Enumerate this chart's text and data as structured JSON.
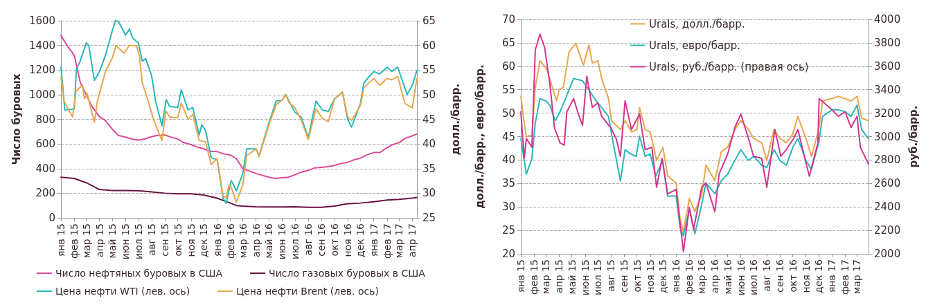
{
  "chart_data": [
    {
      "type": "line",
      "ylabel": "Число буровых",
      "y2label": "долл./барр.",
      "xlim": [
        "2015-01-01",
        "2017-04-12"
      ],
      "xticks": [
        {
          "value": "2015-01",
          "label": "янв 15"
        },
        {
          "value": "2015-02",
          "label": "фев 15"
        },
        {
          "value": "2015-03",
          "label": "мар 15"
        },
        {
          "value": "2015-04",
          "label": "апр 15"
        },
        {
          "value": "2015-05",
          "label": "май 15"
        },
        {
          "value": "2015-06",
          "label": "июн 15"
        },
        {
          "value": "2015-07",
          "label": "июл 15"
        },
        {
          "value": "2015-08",
          "label": "авг 15"
        },
        {
          "value": "2015-09",
          "label": "сен 15"
        },
        {
          "value": "2015-10",
          "label": "окт 15"
        },
        {
          "value": "2015-11",
          "label": "ноя 15"
        },
        {
          "value": "2015-12",
          "label": "дек 15"
        },
        {
          "value": "2016-01",
          "label": "янв 16"
        },
        {
          "value": "2016-02",
          "label": "фев 16"
        },
        {
          "value": "2016-03",
          "label": "мар 16"
        },
        {
          "value": "2016-04",
          "label": "апр 16"
        },
        {
          "value": "2016-05",
          "label": "май 16"
        },
        {
          "value": "2016-06",
          "label": "июн 16"
        },
        {
          "value": "2016-07",
          "label": "июл 16"
        },
        {
          "value": "2016-08",
          "label": "авг 16"
        },
        {
          "value": "2016-09",
          "label": "сен 16"
        },
        {
          "value": "2016-10",
          "label": "окт 16"
        },
        {
          "value": "2016-11",
          "label": "ноя 16"
        },
        {
          "value": "2016-12",
          "label": "дек 16"
        },
        {
          "value": "2017-01",
          "label": "янв 17"
        },
        {
          "value": "2017-02",
          "label": "фев 17"
        },
        {
          "value": "2017-03",
          "label": "мар 17"
        },
        {
          "value": "2017-04",
          "label": "апр 17"
        }
      ],
      "ylim": [
        0,
        1600
      ],
      "yticks": [
        0,
        200,
        400,
        600,
        800,
        1000,
        1200,
        1400,
        1600
      ],
      "y2lim": [
        25,
        65
      ],
      "y2ticks": [
        25,
        30,
        35,
        40,
        45,
        50,
        55,
        60,
        65
      ],
      "grid": "y",
      "legend": "bottom",
      "marker": "none",
      "line_style": "solid",
      "series": [
        {
          "name": "Число нефтяных буровых в США",
          "color": "#dd4a98",
          "x": [
            "2015-01-01",
            "2015-01-15",
            "2015-02-01",
            "2015-02-15",
            "2015-03-01",
            "2015-03-15",
            "2015-04-01",
            "2015-04-15",
            "2015-05-01",
            "2015-05-15",
            "2015-06-01",
            "2015-06-15",
            "2015-07-01",
            "2015-07-15",
            "2015-08-01",
            "2015-08-15",
            "2015-09-01",
            "2015-09-15",
            "2015-10-01",
            "2015-10-15",
            "2015-11-01",
            "2015-11-15",
            "2015-12-01",
            "2015-12-15",
            "2016-01-01",
            "2016-01-15",
            "2016-02-01",
            "2016-02-15",
            "2016-03-01",
            "2016-04-01",
            "2016-05-01",
            "2016-05-15",
            "2016-06-01",
            "2016-06-15",
            "2016-07-01",
            "2016-07-15",
            "2016-08-01",
            "2016-08-15",
            "2016-09-01",
            "2016-09-15",
            "2016-10-01",
            "2016-10-15",
            "2016-11-01",
            "2016-11-15",
            "2016-12-01",
            "2016-12-15",
            "2017-01-01",
            "2017-01-15",
            "2017-02-01",
            "2017-02-15",
            "2017-03-01",
            "2017-03-15",
            "2017-04-01",
            "2017-04-12"
          ],
          "values": [
            1480,
            1400,
            1320,
            1100,
            1000,
            900,
            820,
            790,
            720,
            670,
            655,
            640,
            630,
            640,
            660,
            670,
            672,
            655,
            640,
            610,
            595,
            575,
            560,
            540,
            538,
            520,
            510,
            480,
            400,
            360,
            330,
            320,
            325,
            330,
            350,
            370,
            385,
            405,
            410,
            415,
            425,
            440,
            450,
            470,
            485,
            510,
            530,
            530,
            570,
            595,
            610,
            645,
            665,
            680
          ]
        },
        {
          "name": "Число газовых буровых в США",
          "color": "#6b1341",
          "x": [
            "2015-01-01",
            "2015-02-01",
            "2015-03-01",
            "2015-04-01",
            "2015-05-01",
            "2015-06-01",
            "2015-07-01",
            "2015-08-01",
            "2015-09-01",
            "2015-10-01",
            "2015-11-01",
            "2015-12-01",
            "2016-01-01",
            "2016-02-01",
            "2016-02-15",
            "2016-03-01",
            "2016-04-01",
            "2016-05-01",
            "2016-06-01",
            "2016-07-01",
            "2016-08-01",
            "2016-09-01",
            "2016-10-01",
            "2016-11-01",
            "2016-12-01",
            "2017-01-01",
            "2017-02-01",
            "2017-03-01",
            "2017-04-01",
            "2017-04-12"
          ],
          "values": [
            330,
            320,
            285,
            230,
            222,
            222,
            220,
            210,
            200,
            195,
            195,
            185,
            160,
            120,
            100,
            95,
            90,
            88,
            88,
            90,
            85,
            85,
            95,
            115,
            120,
            130,
            145,
            150,
            160,
            165
          ]
        },
        {
          "name": "Цена нефти WTI (лев. ось)",
          "color": "#2ab7b7",
          "axis": "y2",
          "x": [
            "2015-01-01",
            "2015-01-10",
            "2015-02-01",
            "2015-02-06",
            "2015-02-14",
            "2015-03-01",
            "2015-03-07",
            "2015-03-20",
            "2015-04-01",
            "2015-04-15",
            "2015-05-01",
            "2015-05-08",
            "2015-05-15",
            "2015-06-01",
            "2015-06-10",
            "2015-06-18",
            "2015-07-01",
            "2015-07-10",
            "2015-07-18",
            "2015-08-01",
            "2015-08-10",
            "2015-08-25",
            "2015-09-04",
            "2015-09-12",
            "2015-10-01",
            "2015-10-09",
            "2015-10-25",
            "2015-11-05",
            "2015-11-20",
            "2015-11-26",
            "2015-12-05",
            "2015-12-18",
            "2016-01-01",
            "2016-01-15",
            "2016-01-22",
            "2016-02-03",
            "2016-02-15",
            "2016-03-01",
            "2016-03-10",
            "2016-04-01",
            "2016-04-08",
            "2016-05-01",
            "2016-05-18",
            "2016-06-01",
            "2016-06-09",
            "2016-06-17",
            "2016-07-01",
            "2016-07-15",
            "2016-08-01",
            "2016-08-19",
            "2016-09-03",
            "2016-09-17",
            "2016-10-01",
            "2016-10-20",
            "2016-11-01",
            "2016-11-10",
            "2016-12-01",
            "2016-12-09",
            "2017-01-01",
            "2017-01-15",
            "2017-02-01",
            "2017-02-12",
            "2017-02-26",
            "2017-03-20",
            "2017-04-01",
            "2017-04-12"
          ],
          "values": [
            55.6,
            46.9,
            47.1,
            55.2,
            56.6,
            60.5,
            60,
            52.9,
            54.7,
            58,
            63,
            65,
            64.9,
            62.1,
            63.3,
            61.4,
            60.5,
            56.8,
            57.3,
            53.8,
            48.7,
            43.7,
            49,
            47.6,
            47.4,
            51,
            46.9,
            47.4,
            41.8,
            43.9,
            42.7,
            37.2,
            36.8,
            29,
            28,
            32.6,
            30.5,
            34,
            39,
            39,
            37.6,
            44.3,
            48.7,
            48.9,
            50,
            48.7,
            46.4,
            45.5,
            41.3,
            48.7,
            46.9,
            46.6,
            49.1,
            50.5,
            45,
            43.4,
            48.2,
            52.4,
            54.7,
            54.2,
            55.6,
            54.7,
            55.6,
            50,
            51.9,
            54.9
          ]
        },
        {
          "name": "Цена нефти Brent (лев. ось)",
          "color": "#e8a64e",
          "axis": "y2",
          "x": [
            "2015-01-01",
            "2015-01-08",
            "2015-01-28",
            "2015-02-05",
            "2015-02-20",
            "2015-02-25",
            "2015-03-03",
            "2015-03-20",
            "2015-03-27",
            "2015-04-15",
            "2015-05-01",
            "2015-05-10",
            "2015-05-28",
            "2015-06-10",
            "2015-06-26",
            "2015-07-03",
            "2015-07-10",
            "2015-07-22",
            "2015-08-05",
            "2015-08-25",
            "2015-09-03",
            "2015-09-12",
            "2015-10-01",
            "2015-10-09",
            "2015-10-25",
            "2015-11-05",
            "2015-11-20",
            "2015-12-05",
            "2015-12-18",
            "2016-01-01",
            "2016-01-15",
            "2016-01-22",
            "2016-01-29",
            "2016-02-03",
            "2016-02-15",
            "2016-03-01",
            "2016-03-10",
            "2016-04-01",
            "2016-04-08",
            "2016-05-01",
            "2016-05-18",
            "2016-06-01",
            "2016-06-09",
            "2016-06-17",
            "2016-07-01",
            "2016-07-15",
            "2016-08-01",
            "2016-08-19",
            "2016-09-03",
            "2016-09-17",
            "2016-10-01",
            "2016-10-20",
            "2016-11-01",
            "2016-11-10",
            "2016-12-01",
            "2016-12-09",
            "2017-01-01",
            "2017-01-15",
            "2017-02-01",
            "2017-02-12",
            "2017-02-26",
            "2017-03-15",
            "2017-04-01",
            "2017-04-12"
          ],
          "values": [
            53.6,
            48.7,
            45.5,
            50.6,
            52,
            49.2,
            50.3,
            44.4,
            48.7,
            54.7,
            57.5,
            60,
            58.4,
            60,
            60,
            58,
            52.4,
            49.2,
            45,
            40.7,
            46.7,
            45.5,
            45.3,
            48.3,
            45,
            46,
            40.7,
            40.4,
            35.8,
            37,
            29.4,
            29.1,
            31.7,
            31.2,
            28.2,
            31.7,
            37.6,
            39,
            37.4,
            43.9,
            48,
            48.9,
            50,
            48.4,
            47.3,
            45,
            40.9,
            47.1,
            45.2,
            44.5,
            49.1,
            50.5,
            45.5,
            44.8,
            47.8,
            51.4,
            53.3,
            51.9,
            53.3,
            53,
            53.7,
            48.2,
            47.3,
            53.3
          ]
        }
      ]
    },
    {
      "type": "line",
      "ylabel": "долл./барр., евро/барр.",
      "y2label": "руб./барр.",
      "xlim": [
        "2015-01-01",
        "2017-03-28"
      ],
      "xticks": [
        {
          "value": "2015-01",
          "label": "янв 15"
        },
        {
          "value": "2015-02",
          "label": "фев 15"
        },
        {
          "value": "2015-03",
          "label": "мар 15"
        },
        {
          "value": "2015-04",
          "label": "апр 15"
        },
        {
          "value": "2015-05",
          "label": "май 15"
        },
        {
          "value": "2015-06",
          "label": "июн 15"
        },
        {
          "value": "2015-07",
          "label": "июл 15"
        },
        {
          "value": "2015-08",
          "label": "авг 15"
        },
        {
          "value": "2015-09",
          "label": "сен 15"
        },
        {
          "value": "2015-10",
          "label": "окт 15"
        },
        {
          "value": "2015-11",
          "label": "ноя 15"
        },
        {
          "value": "2015-12",
          "label": "дек 15"
        },
        {
          "value": "2016-01",
          "label": "янв 16"
        },
        {
          "value": "2016-02",
          "label": "фев 16"
        },
        {
          "value": "2016-03",
          "label": "мар 16"
        },
        {
          "value": "2016-04",
          "label": "апр 16"
        },
        {
          "value": "2016-05",
          "label": "май 16"
        },
        {
          "value": "2016-06",
          "label": "июн 16"
        },
        {
          "value": "2016-07",
          "label": "июл 16"
        },
        {
          "value": "2016-08",
          "label": "авг 16"
        },
        {
          "value": "2016-09",
          "label": "сен 16"
        },
        {
          "value": "2016-10",
          "label": "окт 16"
        },
        {
          "value": "2016-11",
          "label": "ноя 16"
        },
        {
          "value": "2016-12",
          "label": "дек 16"
        },
        {
          "value": "2017-01",
          "label": "янв 17"
        },
        {
          "value": "2017-02",
          "label": "фев 17"
        },
        {
          "value": "2017-03",
          "label": "мар 17"
        }
      ],
      "ylim": [
        20,
        70
      ],
      "yticks": [
        20,
        25,
        30,
        35,
        40,
        45,
        50,
        55,
        60,
        65,
        70
      ],
      "y2lim": [
        2000,
        4000
      ],
      "y2ticks": [
        2000,
        2200,
        2400,
        2600,
        2800,
        3000,
        3200,
        3400,
        3600,
        3800,
        4000
      ],
      "grid": "y",
      "legend": "top",
      "marker": "none",
      "line_style": "solid",
      "series": [
        {
          "name": "Urals, долл./барр.",
          "color": "#e8a64e",
          "x": [
            "2015-01-01",
            "2015-01-09",
            "2015-01-14",
            "2015-01-27",
            "2015-02-04",
            "2015-02-15",
            "2015-03-01",
            "2015-03-10",
            "2015-03-26",
            "2015-04-01",
            "2015-04-11",
            "2015-04-24",
            "2015-05-10",
            "2015-05-28",
            "2015-06-10",
            "2015-06-18",
            "2015-07-01",
            "2015-07-10",
            "2015-07-26",
            "2015-08-02",
            "2015-08-23",
            "2015-09-03",
            "2015-09-18",
            "2015-10-01",
            "2015-10-07",
            "2015-10-20",
            "2015-11-01",
            "2015-11-16",
            "2015-12-01",
            "2015-12-12",
            "2016-01-01",
            "2016-01-10",
            "2016-01-18",
            "2016-02-01",
            "2016-02-14",
            "2016-03-01",
            "2016-03-11",
            "2016-04-01",
            "2016-04-16",
            "2016-05-01",
            "2016-05-18",
            "2016-06-01",
            "2016-06-19",
            "2016-07-01",
            "2016-07-20",
            "2016-08-01",
            "2016-08-18",
            "2016-09-01",
            "2016-09-16",
            "2016-10-01",
            "2016-10-13",
            "2016-11-01",
            "2016-11-14",
            "2016-12-01",
            "2016-12-10",
            "2017-01-01",
            "2017-01-16",
            "2017-02-01",
            "2017-02-15",
            "2017-03-01",
            "2017-03-12",
            "2017-03-28"
          ],
          "values": [
            53.6,
            47.9,
            45,
            45.3,
            55.5,
            61.2,
            59.7,
            57.4,
            52.6,
            55,
            55.5,
            63,
            64.9,
            60.2,
            64.5,
            60.7,
            61.2,
            57.4,
            53.1,
            48.4,
            46.5,
            48.4,
            46,
            46.5,
            51.2,
            46.5,
            46,
            39.9,
            42.7,
            36.6,
            35.1,
            27.6,
            24.7,
            31.8,
            29,
            32.5,
            38.9,
            35.6,
            41.8,
            42.7,
            46.5,
            48.4,
            46.5,
            44.6,
            43.7,
            39.9,
            46.5,
            44.6,
            43.7,
            45.5,
            49.3,
            44.6,
            40.8,
            46.5,
            52.6,
            53.1,
            53.6,
            53.1,
            52.6,
            53.6,
            48.9,
            48.4
          ]
        },
        {
          "name": "Urals, евро/барр.",
          "color": "#2bb7b7",
          "x": [
            "2015-01-01",
            "2015-01-09",
            "2015-01-14",
            "2015-01-27",
            "2015-02-04",
            "2015-02-15",
            "2015-03-01",
            "2015-03-10",
            "2015-03-23",
            "2015-04-03",
            "2015-04-16",
            "2015-05-05",
            "2015-05-26",
            "2015-06-10",
            "2015-06-23",
            "2015-07-10",
            "2015-07-26",
            "2015-08-05",
            "2015-08-23",
            "2015-09-03",
            "2015-09-16",
            "2015-09-29",
            "2015-10-07",
            "2015-10-20",
            "2015-11-01",
            "2015-11-14",
            "2015-11-30",
            "2015-12-12",
            "2016-01-01",
            "2016-01-10",
            "2016-01-18",
            "2016-02-01",
            "2016-02-14",
            "2016-03-01",
            "2016-03-11",
            "2016-04-01",
            "2016-04-16",
            "2016-05-01",
            "2016-05-18",
            "2016-06-01",
            "2016-06-19",
            "2016-07-01",
            "2016-07-20",
            "2016-08-01",
            "2016-08-18",
            "2016-09-01",
            "2016-09-16",
            "2016-10-01",
            "2016-10-13",
            "2016-11-01",
            "2016-11-14",
            "2016-12-01",
            "2016-12-10",
            "2017-01-01",
            "2017-01-16",
            "2017-02-01",
            "2017-02-15",
            "2017-03-01",
            "2017-03-12",
            "2017-03-28"
          ],
          "values": [
            44.6,
            39.9,
            37,
            40.3,
            47.9,
            53.1,
            52.6,
            51.7,
            48.4,
            50.3,
            53.1,
            57.4,
            56.9,
            55,
            53.1,
            51.2,
            49.3,
            44.1,
            35.6,
            42.2,
            41.3,
            40.8,
            45.1,
            40.8,
            41.3,
            36.6,
            39.9,
            32.3,
            32.3,
            25.7,
            23.8,
            29.5,
            24.3,
            30.5,
            35.1,
            32.8,
            35.6,
            37,
            39.9,
            42.2,
            39.9,
            40.8,
            38.9,
            38.4,
            42.2,
            39.9,
            38.9,
            42.7,
            44.6,
            39.9,
            38,
            43.7,
            49.3,
            50.7,
            50.7,
            50.3,
            49.3,
            51.7,
            46.5,
            44.6
          ]
        },
        {
          "name": "Urals, руб./барр. (правая ось)",
          "color": "#d1368f",
          "axis": "y2",
          "x": [
            "2015-01-01",
            "2015-01-09",
            "2015-01-14",
            "2015-01-27",
            "2015-02-04",
            "2015-02-15",
            "2015-02-26",
            "2015-03-10",
            "2015-03-21",
            "2015-04-03",
            "2015-04-13",
            "2015-04-19",
            "2015-05-05",
            "2015-05-18",
            "2015-05-26",
            "2015-06-05",
            "2015-06-18",
            "2015-07-01",
            "2015-07-10",
            "2015-07-18",
            "2015-07-31",
            "2015-08-13",
            "2015-08-23",
            "2015-09-03",
            "2015-09-18",
            "2015-10-07",
            "2015-10-20",
            "2015-11-05",
            "2015-11-16",
            "2015-11-29",
            "2015-12-12",
            "2016-01-01",
            "2016-01-10",
            "2016-01-18",
            "2016-02-01",
            "2016-02-11",
            "2016-03-01",
            "2016-03-11",
            "2016-04-01",
            "2016-04-11",
            "2016-05-01",
            "2016-05-18",
            "2016-06-01",
            "2016-06-19",
            "2016-07-01",
            "2016-07-20",
            "2016-08-01",
            "2016-08-20",
            "2016-09-03",
            "2016-09-16",
            "2016-10-03",
            "2016-10-13",
            "2016-11-01",
            "2016-11-09",
            "2016-11-29",
            "2016-12-02",
            "2017-01-01",
            "2017-01-16",
            "2017-02-01",
            "2017-02-15",
            "2017-03-01",
            "2017-03-09",
            "2017-03-28"
          ],
          "values": [
            3211,
            2814,
            2984,
            2908,
            3740,
            3873,
            3760,
            3457,
            3078,
            2946,
            2927,
            3211,
            3324,
            3173,
            3097,
            3514,
            3249,
            3287,
            3173,
            3135,
            3078,
            2984,
            2832,
            3305,
            3060,
            3192,
            2889,
            2908,
            2568,
            2814,
            2511,
            2549,
            2265,
            2019,
            2397,
            2208,
            2568,
            2605,
            2359,
            2681,
            2851,
            3078,
            3192,
            2984,
            2832,
            2814,
            2568,
            3060,
            2832,
            2889,
            2984,
            3060,
            2776,
            2662,
            2946,
            3324,
            3230,
            3173,
            3211,
            3078,
            3173,
            2908,
            2766
          ]
        }
      ]
    }
  ]
}
